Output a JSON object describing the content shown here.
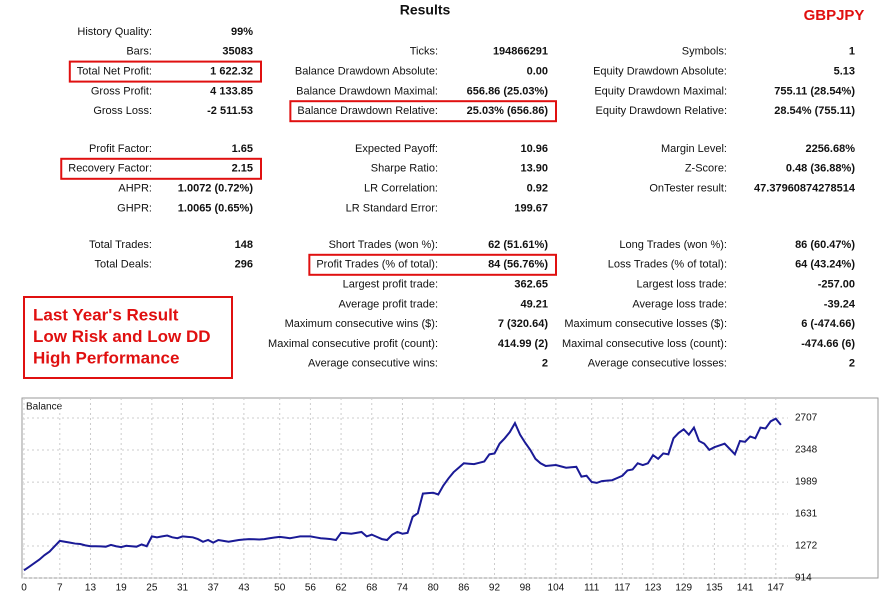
{
  "header": {
    "title": "Results",
    "symbol": "GBPJPY"
  },
  "report": {
    "sections": [
      {
        "rows": [
          [
            {
              "label": "History Quality:",
              "value": "99%"
            },
            null,
            null
          ],
          [
            {
              "label": "Bars:",
              "value": "35083"
            },
            {
              "label": "Ticks:",
              "value": "194866291"
            },
            {
              "label": "Symbols:",
              "value": "1"
            }
          ],
          [
            {
              "label": "Total Net Profit:",
              "value": "1 622.32",
              "highlight": true
            },
            {
              "label": "Balance Drawdown Absolute:",
              "value": "0.00"
            },
            {
              "label": "Equity Drawdown Absolute:",
              "value": "5.13"
            }
          ],
          [
            {
              "label": "Gross Profit:",
              "value": "4 133.85"
            },
            {
              "label": "Balance Drawdown Maximal:",
              "value": "656.86 (25.03%)"
            },
            {
              "label": "Equity Drawdown Maximal:",
              "value": "755.11 (28.54%)"
            }
          ],
          [
            {
              "label": "Gross Loss:",
              "value": "-2 511.53"
            },
            {
              "label": "Balance Drawdown Relative:",
              "value": "25.03% (656.86)",
              "highlight": true
            },
            {
              "label": "Equity Drawdown Relative:",
              "value": "28.54% (755.11)"
            }
          ]
        ]
      },
      {
        "rows": [
          [
            {
              "label": "Profit Factor:",
              "value": "1.65"
            },
            {
              "label": "Expected Payoff:",
              "value": "10.96"
            },
            {
              "label": "Margin Level:",
              "value": "2256.68%"
            }
          ],
          [
            {
              "label": "Recovery Factor:",
              "value": "2.15",
              "highlight": true
            },
            {
              "label": "Sharpe Ratio:",
              "value": "13.90"
            },
            {
              "label": "Z-Score:",
              "value": "0.48 (36.88%)"
            }
          ],
          [
            {
              "label": "AHPR:",
              "value": "1.0072 (0.72%)"
            },
            {
              "label": "LR Correlation:",
              "value": "0.92"
            },
            {
              "label": "OnTester result:",
              "value": "47.37960874278514"
            }
          ],
          [
            {
              "label": "GHPR:",
              "value": "1.0065 (0.65%)"
            },
            {
              "label": "LR Standard Error:",
              "value": "199.67"
            },
            null
          ]
        ]
      },
      {
        "rows": [
          [
            {
              "label": "Total Trades:",
              "value": "148"
            },
            {
              "label": "Short Trades (won %):",
              "value": "62 (51.61%)"
            },
            {
              "label": "Long Trades (won %):",
              "value": "86 (60.47%)"
            }
          ],
          [
            {
              "label": "Total Deals:",
              "value": "296"
            },
            {
              "label": "Profit Trades (% of total):",
              "value": "84 (56.76%)",
              "highlight": true
            },
            {
              "label": "Loss Trades (% of total):",
              "value": "64 (43.24%)"
            }
          ],
          [
            null,
            {
              "label": "Largest profit trade:",
              "value": "362.65"
            },
            {
              "label": "Largest loss trade:",
              "value": "-257.00"
            }
          ],
          [
            null,
            {
              "label": "Average profit trade:",
              "value": "49.21"
            },
            {
              "label": "Average loss trade:",
              "value": "-39.24"
            }
          ],
          [
            null,
            {
              "label": "Maximum consecutive wins ($):",
              "value": "7 (320.64)"
            },
            {
              "label": "Maximum consecutive losses ($):",
              "value": "6 (-474.66)"
            }
          ],
          [
            null,
            {
              "label": "Maximal consecutive profit (count):",
              "value": "414.99 (2)"
            },
            {
              "label": "Maximal consecutive loss (count):",
              "value": "-474.66 (6)"
            }
          ],
          [
            null,
            {
              "label": "Average consecutive wins:",
              "value": "2"
            },
            {
              "label": "Average consecutive losses:",
              "value": "2"
            }
          ]
        ]
      }
    ]
  },
  "annotation": {
    "lines": [
      "Last  Year's Result",
      "Low Risk and Low DD",
      "High Performance"
    ]
  },
  "chart_data": {
    "type": "line",
    "title": "Balance",
    "grid": true,
    "xlim": [
      0,
      149
    ],
    "ylim": [
      914,
      2909
    ],
    "xticks": [
      0,
      7,
      13,
      19,
      25,
      31,
      37,
      43,
      50,
      56,
      62,
      68,
      74,
      80,
      86,
      92,
      98,
      104,
      111,
      117,
      123,
      129,
      135,
      141,
      147
    ],
    "yticks": [
      914,
      1272,
      1631,
      1989,
      2348,
      2707
    ],
    "x": [
      0,
      1,
      2,
      3,
      4,
      5,
      6,
      7,
      8,
      9,
      10,
      11,
      12,
      13,
      14,
      15,
      16,
      17,
      18,
      19,
      20,
      21,
      22,
      23,
      24,
      25,
      26,
      27,
      28,
      29,
      30,
      31,
      32,
      33,
      34,
      35,
      36,
      37,
      38,
      39,
      40,
      41,
      42,
      43,
      44,
      45,
      46,
      47,
      48,
      49,
      50,
      51,
      52,
      53,
      54,
      55,
      56,
      57,
      58,
      59,
      60,
      61,
      62,
      63,
      64,
      65,
      66,
      67,
      68,
      69,
      70,
      71,
      72,
      73,
      74,
      75,
      76,
      77,
      78,
      79,
      80,
      81,
      82,
      83,
      84,
      85,
      86,
      87,
      88,
      89,
      90,
      91,
      92,
      93,
      94,
      95,
      96,
      97,
      98,
      99,
      100,
      101,
      102,
      103,
      104,
      105,
      106,
      107,
      108,
      109,
      110,
      111,
      112,
      113,
      114,
      115,
      116,
      117,
      118,
      119,
      120,
      121,
      122,
      123,
      124,
      125,
      126,
      127,
      128,
      129,
      130,
      131,
      132,
      133,
      134,
      135,
      136,
      137,
      138,
      139,
      140,
      141,
      142,
      143,
      144,
      145,
      146,
      147,
      148
    ],
    "series": [
      {
        "name": "Balance",
        "color": "#1a1a96",
        "values": [
          1000,
          1040,
          1080,
          1120,
          1170,
          1210,
          1270,
          1330,
          1320,
          1310,
          1300,
          1295,
          1280,
          1270,
          1270,
          1268,
          1265,
          1285,
          1270,
          1260,
          1275,
          1270,
          1265,
          1290,
          1270,
          1380,
          1370,
          1380,
          1390,
          1370,
          1360,
          1380,
          1375,
          1370,
          1350,
          1320,
          1340,
          1310,
          1340,
          1330,
          1320,
          1330,
          1340,
          1345,
          1350,
          1348,
          1345,
          1350,
          1360,
          1368,
          1375,
          1368,
          1360,
          1370,
          1380,
          1380,
          1380,
          1370,
          1360,
          1355,
          1350,
          1340,
          1420,
          1415,
          1410,
          1420,
          1430,
          1380,
          1400,
          1375,
          1350,
          1340,
          1400,
          1430,
          1410,
          1420,
          1600,
          1640,
          1860,
          1865,
          1870,
          1850,
          1950,
          2030,
          2100,
          2150,
          2200,
          2195,
          2190,
          2205,
          2220,
          2300,
          2310,
          2420,
          2480,
          2550,
          2650,
          2520,
          2430,
          2350,
          2250,
          2200,
          2170,
          2175,
          2180,
          2165,
          2150,
          2155,
          2160,
          2050,
          2060,
          1990,
          1980,
          2000,
          2005,
          2010,
          2035,
          2060,
          2120,
          2130,
          2200,
          2180,
          2200,
          2290,
          2250,
          2310,
          2300,
          2480,
          2540,
          2580,
          2520,
          2600,
          2450,
          2420,
          2350,
          2380,
          2400,
          2420,
          2360,
          2300,
          2450,
          2440,
          2500,
          2480,
          2600,
          2590,
          2670,
          2700,
          2630
        ]
      }
    ]
  }
}
